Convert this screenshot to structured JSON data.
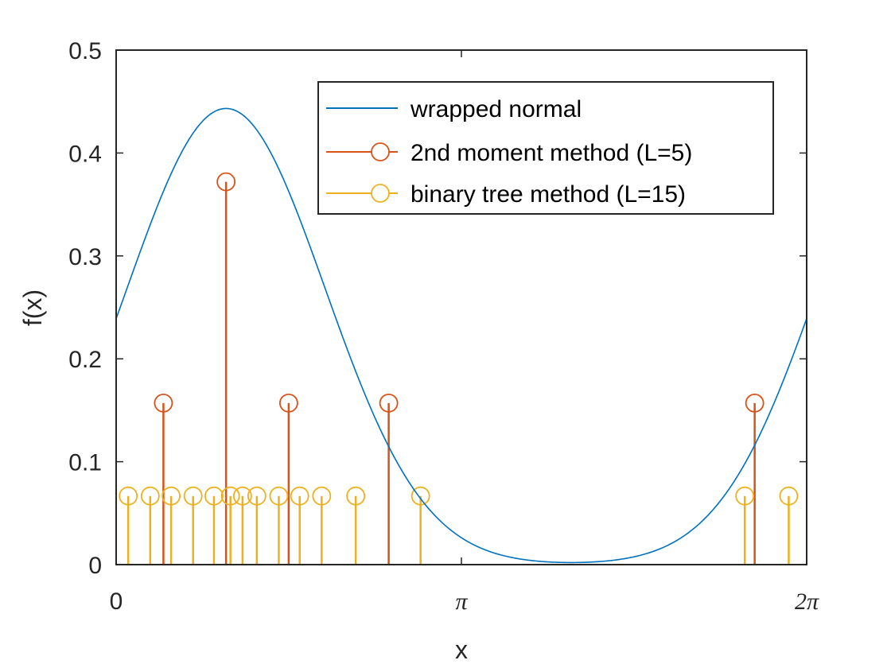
{
  "chart_data": {
    "type": "line",
    "xlabel": "x",
    "ylabel": "f(x)",
    "xlim": [
      0,
      6.2832
    ],
    "ylim": [
      0,
      0.5
    ],
    "x_ticks": [
      {
        "value": 0,
        "label": "0"
      },
      {
        "value": 3.1416,
        "label": "π"
      },
      {
        "value": 6.2832,
        "label": "2π"
      }
    ],
    "y_ticks": [
      {
        "value": 0,
        "label": "0"
      },
      {
        "value": 0.1,
        "label": "0.1"
      },
      {
        "value": 0.2,
        "label": "0.2"
      },
      {
        "value": 0.3,
        "label": "0.3"
      },
      {
        "value": 0.4,
        "label": "0.4"
      },
      {
        "value": 0.5,
        "label": "0.5"
      }
    ],
    "grid": false,
    "legend_position": "top-right",
    "series": [
      {
        "name": "wrapped normal",
        "kind": "line",
        "color": "#0072BD",
        "mu": 1.0,
        "sigma": 0.9
      },
      {
        "name": "2nd moment method (L=5)",
        "kind": "stem",
        "color": "#D95319",
        "x": [
          0.43,
          1.0,
          1.57,
          2.48,
          5.81
        ],
        "y": [
          0.157,
          0.372,
          0.157,
          0.157,
          0.157
        ]
      },
      {
        "name": "binary tree method (L=15)",
        "kind": "stem",
        "color": "#EDB120",
        "x": [
          0.11,
          0.31,
          0.5,
          0.7,
          0.89,
          1.04,
          1.15,
          1.28,
          1.48,
          1.67,
          1.87,
          2.18,
          2.77,
          5.72,
          6.12
        ],
        "y": [
          0.0667,
          0.0667,
          0.0667,
          0.0667,
          0.0667,
          0.0667,
          0.0667,
          0.0667,
          0.0667,
          0.0667,
          0.0667,
          0.0667,
          0.0667,
          0.0667,
          0.0667
        ]
      }
    ]
  }
}
